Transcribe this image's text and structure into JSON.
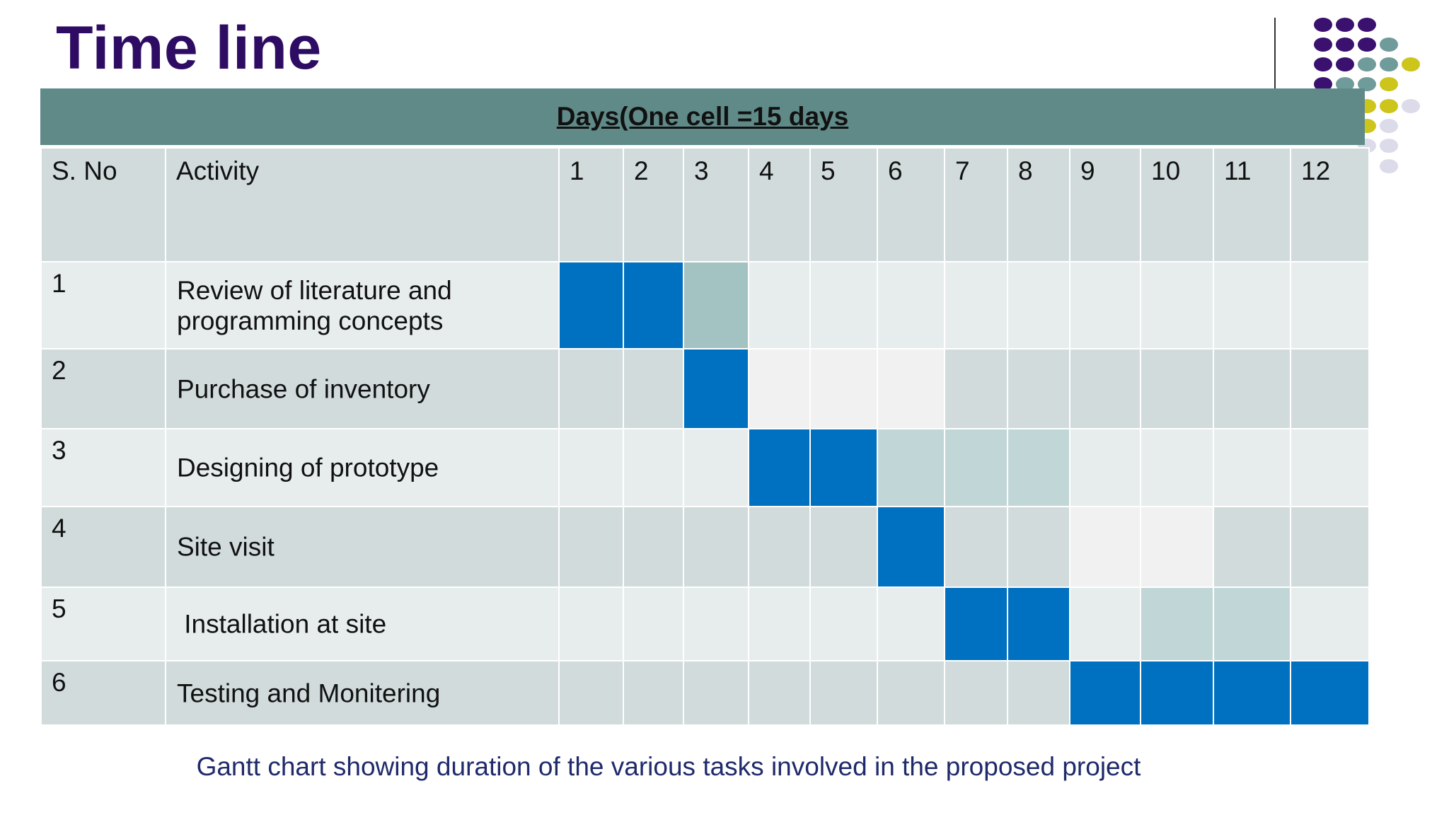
{
  "title": "Time line",
  "days_header": "Days(One cell =15 days",
  "columns": {
    "sno": "S. No",
    "activity": "Activity",
    "periods": [
      "1",
      "2",
      "3",
      "4",
      "5",
      "6",
      "7",
      "8",
      "9",
      "10",
      "11",
      "12"
    ]
  },
  "rows": [
    {
      "sno": "1",
      "activity": "Review of literature and programming concepts",
      "active": [
        1,
        2
      ],
      "tint": [
        3
      ],
      "light": [],
      "blank": []
    },
    {
      "sno": "2",
      "activity": "Purchase of inventory",
      "active": [
        3
      ],
      "tint": [],
      "light": [],
      "blank": [
        4,
        5,
        6
      ]
    },
    {
      "sno": "3",
      "activity": "Designing of prototype",
      "active": [
        4,
        5
      ],
      "tint": [],
      "light": [
        6,
        7,
        8
      ],
      "blank": []
    },
    {
      "sno": "4",
      "activity": "Site visit",
      "active": [
        6
      ],
      "tint": [],
      "light": [],
      "blank": [
        9,
        10
      ]
    },
    {
      "sno": "5",
      "activity": " Installation at site",
      "active": [
        7,
        8
      ],
      "tint": [],
      "light": [
        10,
        11
      ],
      "blank": []
    },
    {
      "sno": "6",
      "activity": "Testing and Monitering",
      "active": [
        9,
        10,
        11,
        12
      ],
      "tint": [],
      "light": [],
      "blank": []
    }
  ],
  "caption": "Gantt chart showing duration of the various tasks involved in the proposed project",
  "colors": {
    "title": "#2e0c63",
    "header_band": "#5f8a88",
    "active_cell": "#0070c0",
    "caption": "#1f2a6b",
    "dot_purple": "#3b1170",
    "dot_teal": "#6f9b9a",
    "dot_yellow": "#cdc51c",
    "dot_lavender": "#dcdbea"
  }
}
